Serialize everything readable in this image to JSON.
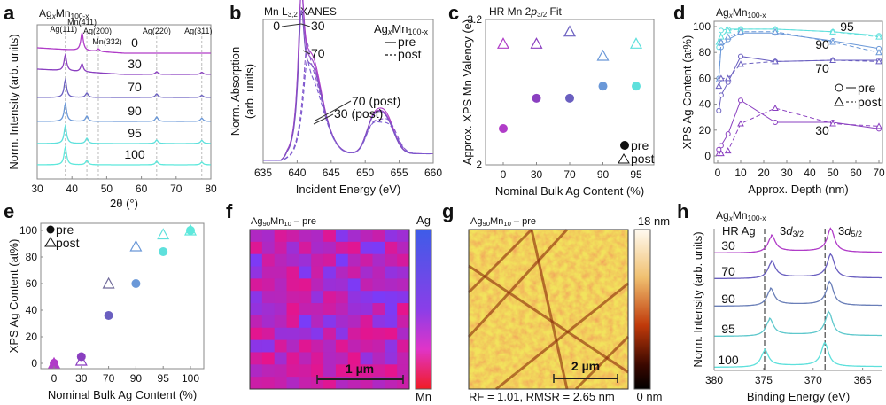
{
  "figure": {
    "panels": [
      "a",
      "b",
      "c",
      "d",
      "e",
      "f",
      "g",
      "h"
    ]
  },
  "colors": {
    "c0": "#b03cc8",
    "c30": "#8a3fc0",
    "c70": "#6a5fc0",
    "c90": "#6a98d8",
    "c95": "#5ee0dc",
    "c100": "#5ee8dc"
  },
  "chart_data": [
    {
      "panel": "a",
      "type": "line",
      "title": "AgxMn100-x",
      "title_main": "Ag",
      "title_sub1": "x",
      "title_mid": "Mn",
      "title_sub2": "100-x",
      "xlabel": "2θ (°)",
      "ylabel": "Norm. Intensity (arb. units)",
      "xlim": [
        30,
        80
      ],
      "xticks": [
        "30",
        "40",
        "50",
        "60",
        "70",
        "80"
      ],
      "reflections": [
        {
          "label": "Ag(111)",
          "x": 38.1
        },
        {
          "label": "Mn(411)",
          "x": 42.9
        },
        {
          "label": "Ag(200)",
          "x": 44.3
        },
        {
          "label": "Mn(332)",
          "x": 47.6
        },
        {
          "label": "Ag(220)",
          "x": 64.4
        },
        {
          "label": "Ag(311)",
          "x": 77.4
        }
      ],
      "series": [
        {
          "name": "0",
          "color": "#b03cc8",
          "peaks": [
            [
              42.9,
              1.0
            ],
            [
              47.6,
              0.15
            ]
          ]
        },
        {
          "name": "30",
          "color": "#8a3fc0",
          "peaks": [
            [
              38.1,
              0.9
            ],
            [
              42.9,
              0.45
            ],
            [
              64.4,
              0.15
            ],
            [
              77.4,
              0.12
            ]
          ]
        },
        {
          "name": "70",
          "color": "#6a5fc0",
          "peaks": [
            [
              38.1,
              1.0
            ],
            [
              44.3,
              0.25
            ],
            [
              64.4,
              0.2
            ],
            [
              77.4,
              0.12
            ]
          ]
        },
        {
          "name": "90",
          "color": "#6a98d8",
          "peaks": [
            [
              38.1,
              1.0
            ],
            [
              44.3,
              0.3
            ],
            [
              64.4,
              0.25
            ],
            [
              77.4,
              0.18
            ]
          ]
        },
        {
          "name": "95",
          "color": "#5ee0dc",
          "peaks": [
            [
              38.1,
              1.0
            ],
            [
              44.3,
              0.3
            ],
            [
              64.4,
              0.2
            ],
            [
              77.4,
              0.18
            ]
          ]
        },
        {
          "name": "100",
          "color": "#5ee8dc",
          "peaks": [
            [
              38.1,
              1.0
            ],
            [
              44.3,
              0.25
            ],
            [
              64.4,
              0.2
            ],
            [
              77.4,
              0.15
            ]
          ]
        }
      ]
    },
    {
      "panel": "b",
      "type": "line",
      "title": "Mn L3,2 XANES",
      "title_main": "Mn L",
      "title_sub": "3,2",
      "title_rest": " XANES",
      "xlabel": "Incident Energy (eV)",
      "ylabel_line1": "Norm. Absorption",
      "ylabel_line2": "(arb. units)",
      "xlim": [
        635,
        660
      ],
      "xticks": [
        "635",
        "640",
        "645",
        "650",
        "655",
        "660"
      ],
      "legend_title_main": "Ag",
      "legend_title_sub1": "x",
      "legend_title_mid": "Mn",
      "legend_title_sub2": "100-x",
      "legend": [
        {
          "label": "pre",
          "style": "solid"
        },
        {
          "label": "post",
          "style": "dashed"
        }
      ],
      "annotations": [
        "0",
        "30",
        "70",
        "70 (post)",
        "30 (post)"
      ],
      "series": [
        {
          "name": "0 pre",
          "style": "solid",
          "L3": 1.0,
          "L3b": 0.52,
          "L2": 0.3
        },
        {
          "name": "30 pre",
          "style": "solid",
          "L3": 0.99,
          "L3b": 0.48,
          "L2": 0.28
        },
        {
          "name": "70 pre",
          "style": "solid",
          "L3": 0.86,
          "L3b": 0.45,
          "L2": 0.27
        },
        {
          "name": "70 post",
          "style": "dashed",
          "L3": 0.42,
          "L3b": 0.4,
          "L2": 0.25
        },
        {
          "name": "30 post",
          "style": "dashed",
          "L3": 0.33,
          "L3b": 0.35,
          "L2": 0.22
        }
      ]
    },
    {
      "panel": "c",
      "type": "scatter",
      "title": "HR Mn 2p3/2 Fit",
      "title_main": "HR Mn 2",
      "title_italic": "p",
      "title_sub": "3/2",
      "title_rest": " Fit",
      "xlabel": "Nominal Bulk Ag Content (%)",
      "ylabel": "Approx. XPS Mn Valency (e)",
      "ylim": [
        2,
        3.2
      ],
      "yticks": [
        "2",
        "3.2"
      ],
      "categories": [
        "0",
        "30",
        "70",
        "90",
        "95"
      ],
      "legend": [
        {
          "label": "pre",
          "marker": "circle"
        },
        {
          "label": "post",
          "marker": "triangle"
        }
      ],
      "series": [
        {
          "name": "pre",
          "marker": "circle",
          "values": [
            2.3,
            2.55,
            2.55,
            2.65,
            2.65
          ]
        },
        {
          "name": "post",
          "marker": "triangle",
          "values": [
            3.0,
            3.0,
            3.1,
            2.9,
            3.0
          ]
        }
      ]
    },
    {
      "panel": "d",
      "type": "line",
      "title_main": "Ag",
      "title_sub1": "x",
      "title_mid": "Mn",
      "title_sub2": "100-x",
      "xlabel": "Approx. Depth (nm)",
      "ylabel": "XPS Ag Content (at%)",
      "xlim": [
        0,
        70
      ],
      "ylim": [
        0,
        100
      ],
      "xticks": [
        "0",
        "10",
        "20",
        "30",
        "40",
        "50",
        "60",
        "70"
      ],
      "yticks": [
        "0",
        "20",
        "40",
        "60",
        "80",
        "100"
      ],
      "legend": [
        {
          "label": "pre",
          "marker": "circle",
          "style": "solid"
        },
        {
          "label": "post",
          "marker": "triangle",
          "style": "dashed"
        }
      ],
      "x": [
        0.5,
        1.5,
        4.5,
        10,
        25,
        50,
        70
      ],
      "series": [
        {
          "name": "95 pre",
          "label": "95",
          "color": "#5ee0dc",
          "style": "solid",
          "marker": "circle",
          "values": [
            84,
            97,
            98,
            98,
            98,
            96,
            93
          ]
        },
        {
          "name": "95 post",
          "label": "",
          "color": "#5ee0dc",
          "style": "dashed",
          "marker": "triangle",
          "values": [
            88,
            92,
            97,
            98,
            98,
            96,
            92
          ]
        },
        {
          "name": "90 pre",
          "label": "90",
          "color": "#6a98d8",
          "style": "solid",
          "marker": "circle",
          "values": [
            60,
            84,
            90,
            95,
            95,
            89,
            83
          ]
        },
        {
          "name": "90 post",
          "label": "",
          "color": "#6a98d8",
          "style": "dashed",
          "marker": "triangle",
          "values": [
            59,
            88,
            92,
            96,
            96,
            88,
            80
          ]
        },
        {
          "name": "70 pre",
          "label": "70",
          "color": "#6a5fc0",
          "style": "solid",
          "marker": "circle",
          "values": [
            35,
            47,
            57,
            77,
            73,
            74,
            74
          ]
        },
        {
          "name": "70 post",
          "label": "",
          "color": "#6a5fc0",
          "style": "dashed",
          "marker": "triangle",
          "values": [
            54,
            60,
            60,
            71,
            73,
            74,
            73
          ]
        },
        {
          "name": "30 pre",
          "label": "30",
          "color": "#8a3fc0",
          "style": "solid",
          "marker": "circle",
          "values": [
            5,
            8,
            17,
            43,
            26,
            26,
            21
          ]
        },
        {
          "name": "30 post",
          "label": "",
          "color": "#8a3fc0",
          "style": "dashed",
          "marker": "triangle",
          "values": [
            2,
            2,
            4,
            25,
            37,
            25,
            23
          ]
        }
      ]
    },
    {
      "panel": "e",
      "type": "scatter",
      "xlabel": "Nominal Bulk Ag Content (%)",
      "ylabel": "XPS Ag Content (at%)",
      "ylim": [
        0,
        100
      ],
      "yticks": [
        "0",
        "20",
        "40",
        "60",
        "80",
        "100"
      ],
      "categories": [
        "0",
        "30",
        "70",
        "90",
        "95",
        "100"
      ],
      "legend": [
        {
          "label": "pre",
          "marker": "circle"
        },
        {
          "label": "post",
          "marker": "triangle"
        }
      ],
      "series": [
        {
          "name": "pre",
          "marker": "circle",
          "values": [
            0,
            5,
            36,
            60,
            84,
            100
          ]
        },
        {
          "name": "post",
          "marker": "triangle",
          "values": [
            0,
            2,
            60,
            88,
            97,
            100
          ]
        }
      ]
    },
    {
      "panel": "f",
      "type": "heatmap",
      "title_main": "Ag",
      "title_sub1": "90",
      "title_mid": "Mn",
      "title_sub2": "10",
      "title_rest": " – pre",
      "colorbar_top": "Ag",
      "colorbar_bottom": "Mn",
      "scalebar": "1 µm"
    },
    {
      "panel": "g",
      "type": "heatmap",
      "title_main": "Ag",
      "title_sub1": "90",
      "title_mid": "Mn",
      "title_sub2": "10",
      "title_rest": " – pre",
      "colorbar_top": "18 nm",
      "colorbar_bottom": "0 nm",
      "scalebar": "2 µm",
      "caption": "RF = 1.01, RMSR = 2.65 nm"
    },
    {
      "panel": "h",
      "type": "line",
      "title_main": "Ag",
      "title_sub1": "x",
      "title_mid": "Mn",
      "title_sub2": "100-x",
      "subtitle": "HR Ag",
      "peak1_main": "3",
      "peak1_italic": "d",
      "peak1_sub": "3/2",
      "peak2_main": "3",
      "peak2_italic": "d",
      "peak2_sub": "5/2",
      "xlabel": "Binding Energy (eV)",
      "ylabel": "Norm. Intensity (arb. units)",
      "xlim": [
        380,
        363
      ],
      "xticks": [
        "380",
        "375",
        "370",
        "365"
      ],
      "reference_lines": [
        374.9,
        368.8
      ],
      "series": [
        {
          "name": "30",
          "color": "#b03cc8",
          "peaks": [
            374.2,
            368.2
          ]
        },
        {
          "name": "70",
          "color": "#6a5fc0",
          "peaks": [
            374.2,
            368.2
          ]
        },
        {
          "name": "90",
          "color": "#6a7fb8",
          "peaks": [
            374.3,
            368.3
          ]
        },
        {
          "name": "95",
          "color": "#5ec8cc",
          "peaks": [
            374.4,
            368.4
          ]
        },
        {
          "name": "100",
          "color": "#5ee0dc",
          "peaks": [
            374.9,
            368.8
          ]
        }
      ]
    }
  ]
}
